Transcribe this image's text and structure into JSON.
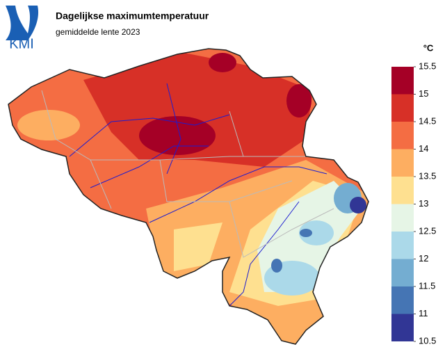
{
  "header": {
    "title": "Dagelijkse maximumtemperatuur",
    "subtitle": "gemiddelde lente 2023"
  },
  "logo": {
    "text": "KMI"
  },
  "legend": {
    "unit": "°C",
    "ticks": [
      10.5,
      11,
      11.5,
      12,
      12.5,
      13,
      13.5,
      14,
      14.5,
      15,
      15.5
    ],
    "colors": [
      "#313695",
      "#4575b4",
      "#74add1",
      "#abd9e9",
      "#e6f5e6",
      "#fee090",
      "#fdae61",
      "#f46d43",
      "#d73027",
      "#a50026"
    ]
  }
}
